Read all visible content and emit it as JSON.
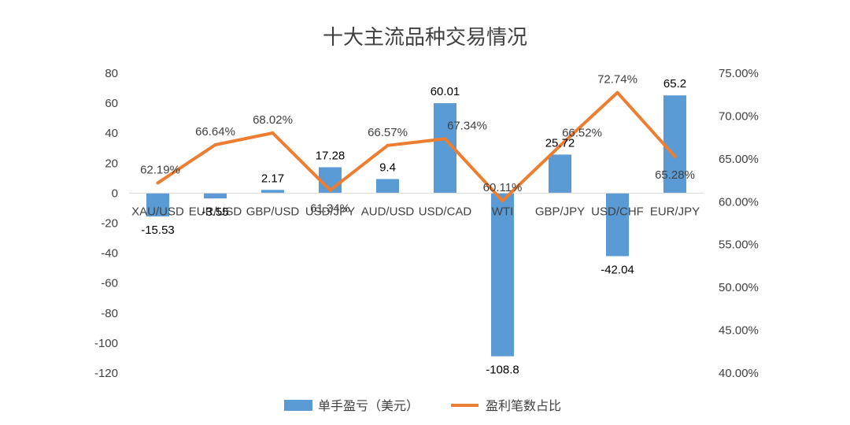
{
  "chart_data": {
    "type": "bar+line",
    "title": "十大主流品种交易情况",
    "categories": [
      "XAU/USD",
      "EUR/USD",
      "GBP/USD",
      "USD/JPY",
      "AUD/USD",
      "USD/CAD",
      "WTI",
      "GBP/JPY",
      "USD/CHF",
      "EUR/JPY"
    ],
    "series": [
      {
        "name": "单手盈亏（美元）",
        "type": "bar",
        "axis": "left",
        "color": "#5B9BD5",
        "values": [
          -15.53,
          -3.55,
          2.17,
          17.28,
          9.4,
          60.01,
          -108.8,
          25.72,
          -42.04,
          65.2
        ],
        "labels": [
          "-15.53",
          "-3.55",
          "2.17",
          "17.28",
          "9.4",
          "60.01",
          "-108.8",
          "25.72",
          "-42.04",
          "65.2"
        ]
      },
      {
        "name": "盈利笔数占比",
        "type": "line",
        "axis": "right",
        "color": "#ED7D31",
        "values": [
          62.19,
          66.64,
          68.02,
          61.34,
          66.57,
          67.34,
          60.11,
          66.52,
          72.74,
          65.28
        ],
        "labels": [
          "62.19%",
          "66.64%",
          "68.02%",
          "61.34%",
          "66.57%",
          "67.34%",
          "60.11%",
          "66.52%",
          "72.74%",
          "65.28%"
        ]
      }
    ],
    "left_axis": {
      "min": -120,
      "max": 80,
      "ticks": [
        80,
        60,
        40,
        20,
        0,
        -20,
        -40,
        -60,
        -80,
        -100,
        -120
      ],
      "tick_labels": [
        "80",
        "60",
        "40",
        "20",
        "0",
        "-20",
        "-40",
        "-60",
        "-80",
        "-100",
        "-120"
      ]
    },
    "right_axis": {
      "min": 40,
      "max": 75,
      "ticks": [
        75,
        70,
        65,
        60,
        55,
        50,
        45,
        40
      ],
      "tick_labels": [
        "75.00%",
        "70.00%",
        "65.00%",
        "60.00%",
        "55.00%",
        "50.00%",
        "45.00%",
        "40.00%"
      ]
    },
    "grid": false,
    "legend_position": "bottom"
  }
}
